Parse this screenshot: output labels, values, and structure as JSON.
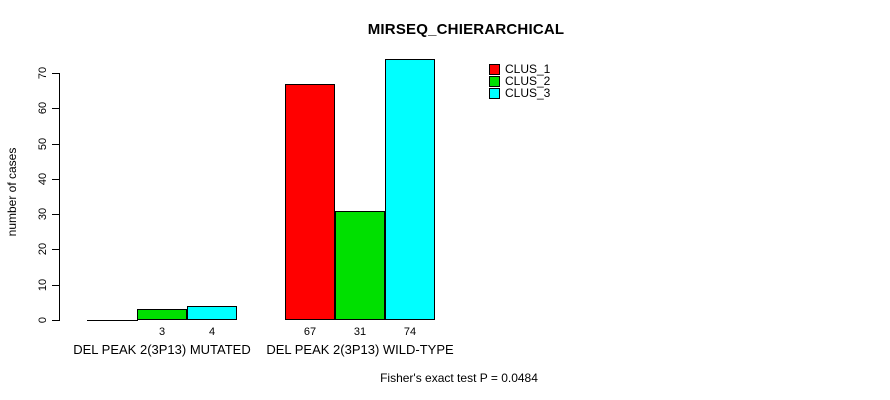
{
  "title": "MIRSEQ_CHIERARCHICAL",
  "chart_data": {
    "type": "bar",
    "title": "MIRSEQ_CHIERARCHICAL",
    "xlabel": "",
    "ylabel": "number of cases",
    "categories": [
      "DEL PEAK 2(3P13) MUTATED",
      "DEL PEAK 2(3P13) WILD-TYPE"
    ],
    "series": [
      {
        "name": "CLUS_1",
        "color": "#ff0000",
        "values": [
          0,
          67
        ]
      },
      {
        "name": "CLUS_2",
        "color": "#00e000",
        "values": [
          3,
          31
        ]
      },
      {
        "name": "CLUS_3",
        "color": "#00ffff",
        "values": [
          4,
          74
        ]
      }
    ],
    "bar_value_labels": [
      [
        "",
        "3",
        "4"
      ],
      [
        "67",
        "31",
        "74"
      ]
    ],
    "yticks": [
      0,
      10,
      20,
      30,
      40,
      50,
      60,
      70
    ],
    "ylim": [
      0,
      70
    ],
    "grid": false,
    "legend_position": "top-right",
    "legend_entries": [
      "CLUS_1",
      "CLUS_2",
      "CLUS_3"
    ],
    "annotation": "Fisher's exact test P = 0.0484"
  }
}
